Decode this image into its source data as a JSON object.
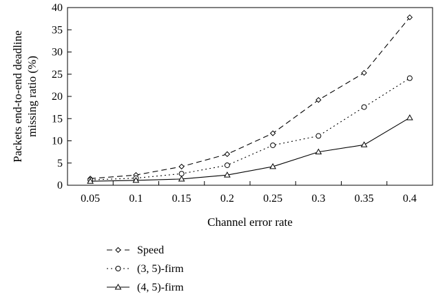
{
  "chart_data": {
    "type": "line",
    "title": "",
    "xlabel": "Channel error rate",
    "ylabel_lines": [
      "Packets end-to-end deadline",
      "missing ratio (%)"
    ],
    "categories": [
      "0.05",
      "0.1",
      "0.15",
      "0.2",
      "0.25",
      "0.3",
      "0.35",
      "0.4"
    ],
    "ylim": [
      0,
      40
    ],
    "yticks": [
      "0",
      "5",
      "10",
      "15",
      "20",
      "25",
      "30",
      "35",
      "40"
    ],
    "grid": false,
    "legend_position": "bottom-left",
    "series": [
      {
        "name": "Speed",
        "marker": "diamond",
        "dash": "8,5",
        "values": [
          1.5,
          2.3,
          4.2,
          7.0,
          11.7,
          19.2,
          25.3,
          37.8
        ]
      },
      {
        "name": "(3, 5)-firm",
        "marker": "circle",
        "dash": "2,4",
        "values": [
          1.2,
          1.6,
          2.6,
          4.5,
          9.0,
          11.1,
          17.6,
          24.1
        ]
      },
      {
        "name": "(4, 5)-firm",
        "marker": "triangle",
        "dash": "",
        "values": [
          0.9,
          1.1,
          1.4,
          2.3,
          4.2,
          7.5,
          9.1,
          15.2
        ]
      }
    ]
  }
}
